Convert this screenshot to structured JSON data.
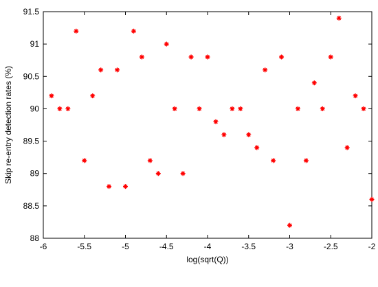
{
  "chart_data": {
    "type": "scatter",
    "x_label": "log(sqrt(Q))",
    "y_label": "Skip re-entry detection rates (%)",
    "x": [
      -5.9,
      -5.8,
      -5.7,
      -5.6,
      -5.5,
      -5.4,
      -5.3,
      -5.2,
      -5.1,
      -5.0,
      -4.9,
      -4.8,
      -4.7,
      -4.6,
      -4.5,
      -4.4,
      -4.3,
      -4.2,
      -4.1,
      -4.0,
      -3.9,
      -3.8,
      -3.7,
      -3.6,
      -3.5,
      -3.4,
      -3.3,
      -3.2,
      -3.1,
      -3.0,
      -2.9,
      -2.8,
      -2.7,
      -2.6,
      -2.5,
      -2.4,
      -2.3,
      -2.2,
      -2.1,
      -2.0
    ],
    "values": [
      90.2,
      90.0,
      90.0,
      91.2,
      89.2,
      90.2,
      90.6,
      88.8,
      90.6,
      88.8,
      91.2,
      90.8,
      89.2,
      89.0,
      91.0,
      90.0,
      89.0,
      90.8,
      90.0,
      90.8,
      89.8,
      89.6,
      90.0,
      90.0,
      89.6,
      89.4,
      90.6,
      89.2,
      90.8,
      88.2,
      90.0,
      89.2,
      90.4,
      90.0,
      90.8,
      91.4,
      89.4,
      90.2,
      90.0,
      88.6
    ],
    "color": "#ff0000",
    "xlim": [
      -6,
      -2
    ],
    "ylim": [
      88,
      91.5
    ],
    "xticks": [
      -6,
      -5.5,
      -5,
      -4.5,
      -4,
      -3.5,
      -3,
      -2.5,
      -2
    ],
    "yticks": [
      88,
      88.5,
      89,
      89.5,
      90,
      90.5,
      91,
      91.5
    ],
    "grid": false
  }
}
